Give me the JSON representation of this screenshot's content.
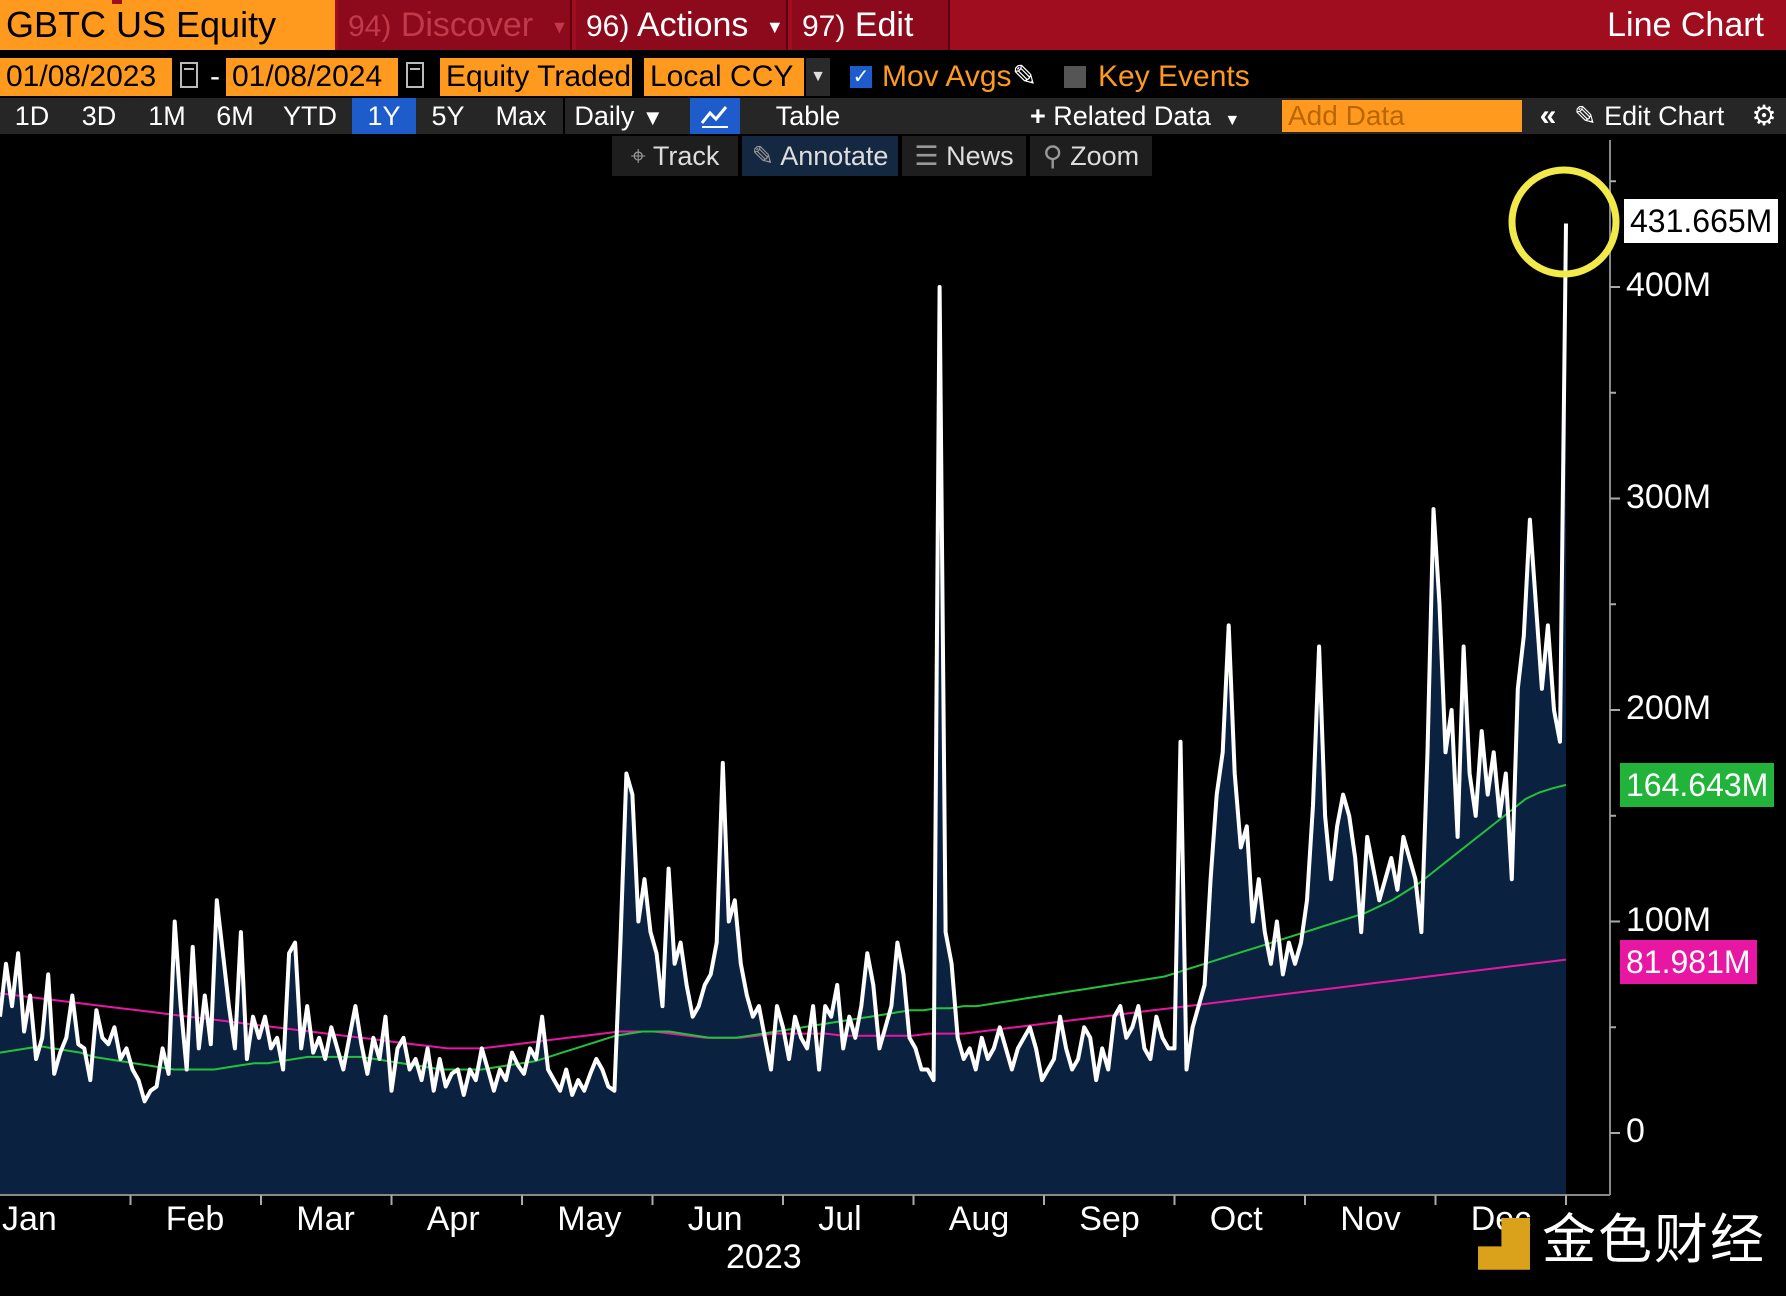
{
  "header": {
    "ticker": "GBTC US Equity",
    "menu": [
      {
        "num": "94)",
        "label": "Discover",
        "enabled": false
      },
      {
        "num": "96)",
        "label": "Actions",
        "enabled": true
      },
      {
        "num": "97)",
        "label": "Edit",
        "enabled": true
      }
    ],
    "chart_type": "Line Chart"
  },
  "controls": {
    "start_date": "01/08/2023",
    "date_sep": "-",
    "end_date": "01/08/2024",
    "field": "Equity Traded",
    "currency": "Local CCY",
    "mov_avgs_label": "Mov Avgs",
    "mov_avgs_checked": true,
    "key_events_label": "Key Events",
    "key_events_checked": false
  },
  "ranges": {
    "items": [
      "1D",
      "3D",
      "1M",
      "6M",
      "YTD",
      "1Y",
      "5Y",
      "Max"
    ],
    "active": "1Y",
    "frequency": "Daily",
    "table_label": "Table",
    "related_data_label": "Related Data",
    "add_data_placeholder": "Add Data",
    "edit_chart_label": "Edit Chart"
  },
  "tools": [
    "Track",
    "Annotate",
    "News",
    "Zoom"
  ],
  "watermark": "金色财经",
  "colors": {
    "accent_orange": "#ff9a1e",
    "header_red": "#a00d1f",
    "active_blue": "#1e5ccc",
    "area_fill": "#0b2140",
    "main_line": "#ffffff",
    "ma_short": "#22c23a",
    "ma_long": "#e817a3",
    "highlight_circle": "#f2ea4a"
  },
  "chart_data": {
    "type": "area",
    "year_label": "2023",
    "x_categories": [
      "Jan",
      "Feb",
      "Mar",
      "Apr",
      "May",
      "Jun",
      "Jul",
      "Aug",
      "Sep",
      "Oct",
      "Nov",
      "Dec"
    ],
    "y_ticks": [
      0,
      100,
      200,
      300,
      400
    ],
    "y_tick_labels": [
      "0",
      "100M",
      "200M",
      "300M",
      "400M"
    ],
    "ylim": [
      -30,
      470
    ],
    "last_value_label": "431.665M",
    "ma_short_label": "164.643M",
    "ma_long_label": "81.981M",
    "series_main": [
      55,
      80,
      60,
      85,
      48,
      65,
      35,
      45,
      75,
      28,
      38,
      45,
      65,
      42,
      40,
      25,
      58,
      45,
      42,
      50,
      35,
      40,
      30,
      25,
      15,
      20,
      22,
      40,
      28,
      100,
      60,
      30,
      88,
      40,
      65,
      42,
      110,
      85,
      60,
      40,
      95,
      35,
      55,
      45,
      55,
      40,
      45,
      30,
      85,
      90,
      40,
      60,
      38,
      45,
      35,
      50,
      40,
      30,
      45,
      60,
      42,
      28,
      45,
      35,
      55,
      20,
      40,
      45,
      30,
      35,
      25,
      40,
      20,
      35,
      22,
      28,
      30,
      18,
      30,
      25,
      40,
      30,
      20,
      30,
      25,
      38,
      32,
      28,
      40,
      35,
      55,
      30,
      25,
      20,
      30,
      18,
      25,
      20,
      28,
      35,
      30,
      22,
      20,
      90,
      170,
      160,
      100,
      120,
      95,
      85,
      60,
      125,
      80,
      90,
      70,
      55,
      60,
      70,
      75,
      90,
      175,
      100,
      110,
      80,
      65,
      55,
      60,
      45,
      30,
      60,
      50,
      35,
      55,
      45,
      40,
      60,
      30,
      60,
      55,
      70,
      40,
      55,
      45,
      60,
      85,
      70,
      40,
      50,
      60,
      90,
      75,
      45,
      40,
      30,
      30,
      25,
      400,
      95,
      80,
      45,
      35,
      40,
      30,
      45,
      35,
      40,
      50,
      40,
      30,
      40,
      45,
      50,
      40,
      25,
      30,
      35,
      55,
      40,
      30,
      35,
      50,
      45,
      25,
      40,
      30,
      55,
      60,
      45,
      50,
      60,
      40,
      35,
      55,
      45,
      40,
      40,
      185,
      30,
      50,
      60,
      70,
      120,
      160,
      180,
      240,
      170,
      135,
      145,
      100,
      120,
      95,
      80,
      100,
      75,
      90,
      80,
      90,
      110,
      155,
      230,
      150,
      120,
      145,
      160,
      150,
      130,
      95,
      140,
      125,
      110,
      120,
      130,
      115,
      140,
      130,
      120,
      95,
      180,
      295,
      250,
      180,
      200,
      140,
      230,
      170,
      150,
      190,
      160,
      180,
      150,
      170,
      120,
      210,
      235,
      290,
      250,
      210,
      240,
      200,
      185,
      430
    ],
    "series_ma_short": [
      38,
      39,
      40,
      41,
      40,
      39,
      38,
      36,
      35,
      34,
      33,
      32,
      31,
      30,
      30,
      30,
      30,
      31,
      32,
      33,
      33,
      34,
      35,
      36,
      36,
      36,
      36,
      36,
      35,
      34,
      33,
      32,
      31,
      30,
      30,
      30,
      30,
      31,
      32,
      33,
      34,
      36,
      38,
      40,
      42,
      44,
      46,
      47,
      48,
      48,
      48,
      47,
      46,
      45,
      45,
      45,
      46,
      47,
      48,
      49,
      50,
      51,
      52,
      53,
      54,
      55,
      56,
      57,
      58,
      58,
      59,
      59,
      60,
      60,
      61,
      62,
      63,
      64,
      65,
      66,
      67,
      68,
      69,
      70,
      71,
      72,
      73,
      74,
      76,
      78,
      80,
      82,
      84,
      86,
      88,
      90,
      92,
      94,
      96,
      98,
      100,
      102,
      104,
      107,
      110,
      114,
      118,
      123,
      128,
      133,
      138,
      143,
      148,
      153,
      158,
      161,
      163,
      164.6
    ],
    "series_ma_long": [
      66,
      65,
      64,
      63,
      62,
      61,
      60,
      59,
      58,
      57,
      56,
      55,
      54,
      53,
      52,
      51,
      50,
      49,
      48,
      47,
      46,
      45,
      44,
      43,
      42,
      41,
      40,
      40,
      40,
      41,
      42,
      43,
      44,
      45,
      46,
      47,
      48,
      48,
      48,
      47,
      46,
      45,
      45,
      45,
      46,
      47,
      47,
      47,
      47,
      46,
      46,
      46,
      46,
      46,
      47,
      47,
      47,
      48,
      49,
      50,
      51,
      52,
      53,
      54,
      55,
      56,
      57,
      58,
      59,
      60,
      61,
      62,
      63,
      64,
      65,
      66,
      67,
      68,
      69,
      70,
      71,
      72,
      73,
      74,
      75,
      76,
      77,
      78,
      79,
      80,
      81,
      82
    ]
  }
}
